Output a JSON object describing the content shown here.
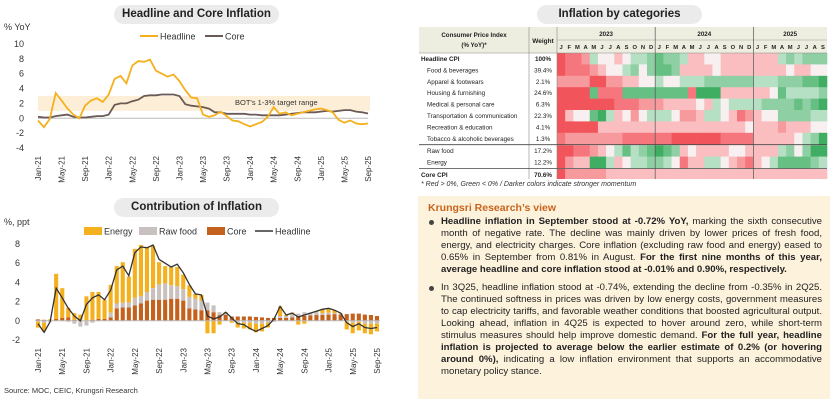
{
  "chart_data": [
    {
      "type": "line",
      "title": "Headline and Core Inflation",
      "ylabel": "% YoY",
      "ylim": [
        -4,
        10
      ],
      "yticks": [
        10,
        8,
        6,
        4,
        2,
        0,
        -2,
        -4
      ],
      "xtick_labels": [
        "Jan-21",
        "May-21",
        "Sep-21",
        "Jan-22",
        "May-22",
        "Sep-22",
        "Jan-23",
        "May-23",
        "Sep-23",
        "Jan-24",
        "May-24",
        "Sep-24",
        "Jan-25",
        "May-25",
        "Sep-25"
      ],
      "annotation": "BOT's 1-3% target range",
      "target_range": [
        1,
        3
      ],
      "legend": "top-center",
      "series": [
        {
          "name": "Headline",
          "color": "#f5b01e",
          "values": [
            -0.3,
            -1.2,
            -0.1,
            3.4,
            2.4,
            1.3,
            0.5,
            0.0,
            1.7,
            2.4,
            2.7,
            2.2,
            3.2,
            5.3,
            5.7,
            4.7,
            7.1,
            7.7,
            7.6,
            7.9,
            6.4,
            6.0,
            5.6,
            5.9,
            5.0,
            3.8,
            2.8,
            2.7,
            0.5,
            0.2,
            0.4,
            0.9,
            0.3,
            -0.3,
            -0.4,
            -0.8,
            -1.1,
            -0.8,
            -0.5,
            0.2,
            1.5,
            0.6,
            0.8,
            0.4,
            0.6,
            0.8,
            1.0,
            1.2,
            1.3,
            1.1,
            0.8,
            -0.2,
            -0.6,
            -0.3,
            -0.7,
            -0.8,
            -0.7
          ]
        },
        {
          "name": "Core",
          "color": "#6b5a55",
          "values": [
            0.2,
            0.1,
            0.1,
            0.3,
            0.4,
            0.5,
            0.2,
            0.1,
            0.1,
            0.2,
            0.3,
            0.3,
            0.5,
            1.8,
            2.0,
            2.0,
            2.3,
            2.5,
            3.0,
            3.1,
            3.1,
            3.2,
            3.2,
            3.2,
            3.0,
            1.9,
            1.7,
            1.6,
            1.5,
            1.3,
            0.8,
            0.8,
            0.6,
            0.6,
            0.6,
            0.6,
            0.5,
            0.5,
            0.4,
            0.4,
            0.4,
            0.4,
            0.5,
            0.6,
            0.7,
            0.8,
            0.8,
            0.8,
            0.9,
            1.0,
            0.9,
            1.0,
            1.1,
            1.1,
            0.9,
            0.8,
            0.65
          ]
        }
      ]
    },
    {
      "type": "bar",
      "stacked": true,
      "title": "Contribution of Inflation",
      "ylabel": "%, ppt",
      "ylim": [
        -2,
        8
      ],
      "yticks": [
        8,
        6,
        4,
        2,
        0,
        -2
      ],
      "xtick_labels": [
        "Jan-21",
        "May-21",
        "Sep-21",
        "Jan-22",
        "May-22",
        "Sep-22",
        "Jan-23",
        "May-23",
        "Sep-23",
        "Jan-24",
        "May-24",
        "Sep-24",
        "Jan-25",
        "May-25",
        "Sep-25"
      ],
      "legend": "top-center",
      "series": [
        {
          "name": "Core",
          "color": "#c4611c",
          "values": [
            0.15,
            0.1,
            0.05,
            0.2,
            0.3,
            0.35,
            0.1,
            0.05,
            0.05,
            0.1,
            0.2,
            0.2,
            0.35,
            1.3,
            1.4,
            1.4,
            1.6,
            1.8,
            2.1,
            2.2,
            2.2,
            2.2,
            2.3,
            2.3,
            2.1,
            1.3,
            1.2,
            1.1,
            1.1,
            0.9,
            0.6,
            0.6,
            0.45,
            0.45,
            0.45,
            0.45,
            0.4,
            0.35,
            0.3,
            0.3,
            0.3,
            0.3,
            0.35,
            0.45,
            0.5,
            0.55,
            0.6,
            0.6,
            0.65,
            0.7,
            0.65,
            0.7,
            0.75,
            0.75,
            0.65,
            0.6,
            0.5
          ]
        },
        {
          "name": "Raw food",
          "color": "#c9c1bf",
          "values": [
            -0.1,
            -0.2,
            -0.1,
            0.0,
            0.0,
            -0.1,
            -0.3,
            -0.6,
            -0.5,
            -0.2,
            0.0,
            0.0,
            0.5,
            0.5,
            0.5,
            0.5,
            0.8,
            0.8,
            0.9,
            1.2,
            1.6,
            1.7,
            1.4,
            1.3,
            1.2,
            1.2,
            1.1,
            1.0,
            0.8,
            0.7,
            0.3,
            0.2,
            0.0,
            -0.2,
            -0.2,
            -0.2,
            -0.3,
            -0.3,
            -0.2,
            -0.1,
            0.2,
            0.2,
            0.3,
            0.3,
            0.4,
            0.3,
            0.3,
            0.2,
            0.2,
            0.1,
            0.1,
            -0.1,
            -0.2,
            -0.1,
            -0.3,
            -0.3,
            -0.3
          ]
        },
        {
          "name": "Energy",
          "color": "#f5b01e",
          "values": [
            -0.6,
            -0.9,
            0.1,
            4.7,
            3.1,
            1.0,
            0.7,
            0.6,
            2.5,
            2.9,
            2.8,
            2.0,
            2.9,
            3.9,
            4.2,
            2.7,
            5.1,
            5.3,
            4.7,
            4.4,
            2.3,
            1.8,
            1.9,
            2.0,
            1.5,
            1.2,
            0.5,
            0.6,
            -1.3,
            -1.3,
            -0.4,
            0.1,
            -0.2,
            -0.5,
            -0.6,
            -0.7,
            -0.9,
            -0.8,
            -0.5,
            0.0,
            1.0,
            0.1,
            0.2,
            -0.4,
            -0.3,
            0.0,
            0.1,
            0.4,
            0.45,
            0.3,
            0.05,
            -0.8,
            -1.1,
            -0.9,
            -1.0,
            -1.1,
            -0.8
          ]
        },
        {
          "name": "Headline",
          "color": "#333333",
          "line": true,
          "values": [
            -0.3,
            -1.2,
            -0.1,
            3.4,
            2.4,
            1.3,
            0.5,
            0.0,
            1.7,
            2.4,
            2.7,
            2.2,
            3.2,
            5.3,
            5.7,
            4.7,
            7.1,
            7.7,
            7.6,
            7.9,
            6.4,
            6.0,
            5.6,
            5.9,
            5.0,
            3.8,
            2.8,
            2.7,
            0.5,
            0.2,
            0.4,
            0.9,
            0.3,
            -0.3,
            -0.4,
            -0.8,
            -1.1,
            -0.8,
            -0.5,
            0.2,
            1.5,
            0.6,
            0.8,
            0.4,
            0.6,
            0.8,
            1.0,
            1.2,
            1.3,
            1.1,
            0.8,
            -0.2,
            -0.6,
            -0.3,
            -0.7,
            -0.8,
            -0.7
          ]
        }
      ],
      "legend_order": [
        "Energy",
        "Raw food",
        "Core",
        "Headline"
      ]
    },
    {
      "type": "heatmap",
      "title": "Inflation by categories",
      "columns_header": [
        "Consumer Price Index (% YoY)*",
        "Weight"
      ],
      "years": [
        "2023",
        "2024",
        "2025"
      ],
      "months": [
        "J",
        "F",
        "M",
        "A",
        "M",
        "J",
        "J",
        "A",
        "S",
        "O",
        "N",
        "D",
        "J",
        "F",
        "M",
        "A",
        "M",
        "J",
        "J",
        "A",
        "S",
        "O",
        "N",
        "D",
        "J",
        "F",
        "M",
        "A",
        "M",
        "J",
        "J",
        "A",
        "S"
      ],
      "rows": [
        {
          "label": "Headline CPI",
          "weight": "100%",
          "bold": true,
          "values": [
            4,
            3,
            3,
            2,
            -1,
            0,
            0,
            1,
            0,
            -1,
            -1,
            -2,
            -3,
            -2,
            -2,
            -1,
            1,
            1,
            0,
            0,
            1,
            1,
            1,
            1,
            1,
            1,
            1,
            -1,
            -2,
            -1,
            -2,
            -2,
            -2
          ]
        },
        {
          "label": "Food & beverages",
          "weight": "39.4%",
          "values": [
            4,
            3,
            3,
            3,
            2,
            1,
            0,
            0,
            -1,
            -2,
            0,
            -2,
            -3,
            -3,
            -2,
            1,
            1,
            1,
            1,
            0,
            1,
            1,
            1,
            1,
            1,
            1,
            1,
            1,
            0,
            1,
            1,
            0,
            0
          ]
        },
        {
          "label": "Apparel & footwears",
          "weight": "2.1%",
          "values": [
            2,
            2,
            2,
            2,
            4,
            4,
            2,
            2,
            1,
            1,
            0,
            0,
            -1,
            0,
            0,
            -1,
            -1,
            -1,
            -2,
            -2,
            -2,
            -2,
            -2,
            -2,
            -1,
            -1,
            -1,
            -2,
            -2,
            -2,
            -3,
            -3,
            -4
          ]
        },
        {
          "label": "Housing & furnishing",
          "weight": "24.6%",
          "values": [
            4,
            4,
            4,
            4,
            -3,
            3,
            3,
            3,
            -3,
            -3,
            -3,
            -3,
            -3,
            -3,
            -3,
            -3,
            3,
            -4,
            -4,
            -4,
            1,
            1,
            1,
            1,
            1,
            1,
            0,
            -3,
            -1,
            -1,
            -1,
            -1,
            -2
          ]
        },
        {
          "label": "Medical & personal care",
          "weight": "6.3%",
          "values": [
            4,
            4,
            4,
            4,
            4,
            4,
            4,
            3,
            3,
            3,
            2,
            2,
            2,
            1,
            1,
            1,
            1,
            0,
            1,
            -1,
            0,
            -1,
            -1,
            -1,
            -1,
            -2,
            -2,
            -2,
            -2,
            -3,
            -2,
            -3,
            -4
          ]
        },
        {
          "label": "Transportation & communication",
          "weight": "22.3%",
          "values": [
            4,
            1,
            0,
            0,
            -3,
            -4,
            -1,
            1,
            0,
            2,
            0,
            -1,
            -1,
            -1,
            0,
            2,
            2,
            1,
            -1,
            -1,
            0,
            1,
            3,
            2,
            1,
            0,
            0,
            -2,
            -2,
            -2,
            -2,
            -1,
            -1
          ]
        },
        {
          "label": "Recreation & education",
          "weight": "4.1%",
          "values": [
            4,
            4,
            4,
            4,
            4,
            1,
            1,
            1,
            1,
            1,
            1,
            1,
            1,
            1,
            1,
            1,
            1,
            1,
            1,
            1,
            1,
            1,
            1,
            0,
            1,
            1,
            1,
            2,
            1,
            1,
            1,
            0,
            0
          ]
        },
        {
          "label": "Tobacco & alcoholic beverages",
          "weight": "1.3%",
          "values": [
            3,
            2,
            2,
            2,
            2,
            2,
            2,
            2,
            3,
            3,
            3,
            3,
            3,
            3,
            4,
            4,
            4,
            4,
            4,
            4,
            3,
            3,
            3,
            3,
            1,
            1,
            1,
            1,
            1,
            0,
            -1,
            -2,
            -4
          ]
        },
        {
          "label": "Raw food",
          "weight": "17.2%",
          "values": [
            4,
            4,
            3,
            3,
            2,
            1,
            0,
            -1,
            -3,
            -1,
            -2,
            -3,
            -4,
            -3,
            -2,
            1,
            0,
            1,
            1,
            1,
            1,
            0,
            0,
            1,
            1,
            1,
            1,
            -1,
            -2,
            0,
            -2,
            -4,
            -4
          ]
        },
        {
          "label": "Energy",
          "weight": "12.2%",
          "values": [
            4,
            2,
            1,
            1,
            -4,
            -4,
            -1,
            1,
            0,
            -1,
            -1,
            -2,
            -2,
            -1,
            0,
            3,
            1,
            1,
            -1,
            -1,
            0,
            1,
            2,
            3,
            1,
            0,
            -1,
            -3,
            -3,
            -3,
            -3,
            -2,
            -1
          ]
        },
        {
          "label": "Core CPI",
          "weight": "70.6%",
          "bold": true,
          "values": [
            4,
            2,
            2,
            2,
            2,
            2,
            1,
            1,
            1,
            1,
            1,
            1,
            1,
            1,
            1,
            1,
            1,
            1,
            1,
            1,
            1,
            1,
            1,
            1,
            1,
            1,
            1,
            1,
            1,
            1,
            1,
            1,
            1
          ]
        }
      ],
      "footnote": "* Red > 0%, Green < 0% / Darker colors indicate stronger momentum"
    }
  ],
  "titles": {
    "line_chart": "Headline and Core Inflation",
    "bar_chart": "Contribution of Inflation",
    "heatmap": "Inflation by categories"
  },
  "source": "Source: MOC, CEIC, Krungsri Research",
  "view": {
    "title": "Krungsri Research’s view",
    "bullets": [
      {
        "parts": [
          {
            "bold": true,
            "text": "Headline inflation in September stood at -0.72% YoY,"
          },
          {
            "bold": false,
            "text": " marking the sixth consecutive month of negative rate. The decline was mainly driven by lower prices of fresh food, energy, and electricity charges. Core inflation (excluding raw food and energy) eased to 0.65% in September from 0.81% in August. "
          },
          {
            "bold": true,
            "text": "For the first nine months of this year, average headline and core inflation stood at -0.01% and 0.90%, respectively."
          }
        ]
      },
      {
        "parts": [
          {
            "bold": false,
            "text": "In 3Q25, headline inflation stood at -0.74%, extending the decline from -0.35% in 2Q25. The continued softness in prices was driven by low energy costs, government measures to cap electricity tariffs, and favorable weather conditions that boosted agricultural output. Looking ahead, inflation in 4Q25 is expected to hover around zero, while short-term stimulus measures should help improve domestic demand. "
          },
          {
            "bold": true,
            "text": "For the full year, headline inflation is projected to average below the earlier estimate of 0.2% (or hovering around 0%),"
          },
          {
            "bold": false,
            "text": " indicating a low inflation environment that supports an accommodative monetary policy stance."
          }
        ]
      }
    ]
  },
  "colors": {
    "red": "#f2545b",
    "green": "#3fae63",
    "view_bg": "#fdf2dc",
    "view_title": "#c8641c"
  }
}
